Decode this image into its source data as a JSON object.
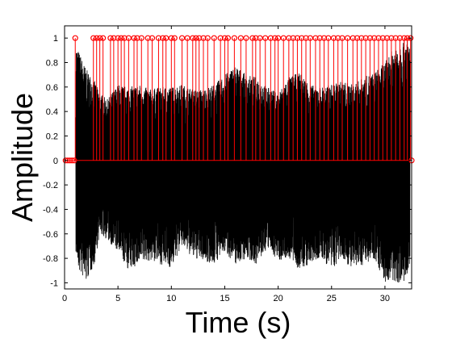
{
  "chart_data": {
    "type": "line",
    "title": "",
    "xlabel": "Time (s)",
    "ylabel": "Amplitude",
    "xlim": [
      0,
      32.5
    ],
    "ylim": [
      -1.05,
      1.1
    ],
    "xticks": [
      0,
      5,
      10,
      15,
      20,
      25,
      30
    ],
    "yticks": [
      -1,
      -0.8,
      -0.6,
      -0.4,
      -0.2,
      0,
      0.2,
      0.4,
      0.6,
      0.8,
      1
    ],
    "ytick_labels": [
      "-1",
      "-0.8",
      "-0.6",
      "-0.4",
      "-0.2",
      "0",
      "0.2",
      "0.4",
      "0.6",
      "0.8",
      "1"
    ],
    "grid": false,
    "series": [
      {
        "kind": "waveform",
        "color": "#000000",
        "x_start": 1.05,
        "x_end": 32.35,
        "envelope_x": [
          1.05,
          1.3,
          2.0,
          2.8,
          3.3,
          4.0,
          5.0,
          6.0,
          7.0,
          8.0,
          9.0,
          10.0,
          11.0,
          12.0,
          13.0,
          14.0,
          15.0,
          16.0,
          17.0,
          18.0,
          19.0,
          20.0,
          21.0,
          22.0,
          23.0,
          24.0,
          25.0,
          26.0,
          27.0,
          28.0,
          29.0,
          30.0,
          31.0,
          32.0,
          32.35
        ],
        "envelope_max": [
          0.95,
          0.9,
          0.75,
          0.65,
          0.55,
          0.5,
          0.62,
          0.6,
          0.62,
          0.58,
          0.6,
          0.6,
          0.62,
          0.58,
          0.58,
          0.62,
          0.7,
          0.78,
          0.7,
          0.68,
          0.6,
          0.55,
          0.68,
          0.72,
          0.62,
          0.6,
          0.62,
          0.65,
          0.62,
          0.68,
          0.72,
          0.8,
          0.95,
          1.0,
          0.95
        ],
        "envelope_min": [
          -0.75,
          -0.9,
          -1.0,
          -0.85,
          -0.6,
          -0.65,
          -0.75,
          -0.9,
          -0.85,
          -0.82,
          -0.85,
          -0.88,
          -0.7,
          -0.8,
          -0.82,
          -0.85,
          -0.75,
          -0.85,
          -0.8,
          -0.85,
          -0.72,
          -0.82,
          -0.8,
          -0.9,
          -0.85,
          -0.8,
          -0.9,
          -0.8,
          -0.9,
          -0.85,
          -0.8,
          -1.0,
          -1.0,
          -1.0,
          -0.9
        ]
      },
      {
        "kind": "stem",
        "color": "#ff0000",
        "marker": "circle",
        "x": [
          1.0,
          2.7,
          3.0,
          3.3,
          3.6,
          4.3,
          4.6,
          5.0,
          5.3,
          5.6,
          6.0,
          6.5,
          6.8,
          7.2,
          7.8,
          8.2,
          8.8,
          9.2,
          9.5,
          10.0,
          10.3,
          11.0,
          11.5,
          12.0,
          12.3,
          12.6,
          13.0,
          13.4,
          14.0,
          14.6,
          15.0,
          15.3,
          15.9,
          16.5,
          17.0,
          17.6,
          17.9,
          18.3,
          18.8,
          19.3,
          19.7,
          20.0,
          20.5,
          21.0,
          21.4,
          21.8,
          22.2,
          22.6,
          23.0,
          23.5,
          23.9,
          24.3,
          24.7,
          25.2,
          25.6,
          26.0,
          26.5,
          27.0,
          27.4,
          27.8,
          28.2,
          28.6,
          29.0,
          29.4,
          29.8,
          30.2,
          30.6,
          31.0,
          31.4,
          31.8,
          32.1,
          32.4
        ],
        "y": [
          1,
          1,
          1,
          1,
          1,
          1,
          1,
          1,
          1,
          1,
          1,
          1,
          1,
          1,
          1,
          1,
          1,
          1,
          1,
          1,
          1,
          1,
          1,
          1,
          1,
          1,
          1,
          1,
          1,
          1,
          1,
          1,
          1,
          1,
          1,
          1,
          1,
          1,
          1,
          1,
          1,
          1,
          1,
          1,
          1,
          1,
          1,
          1,
          1,
          1,
          1,
          1,
          1,
          1,
          1,
          1,
          1,
          1,
          1,
          1,
          1,
          1,
          1,
          1,
          1,
          1,
          1,
          1,
          1,
          1,
          1,
          1
        ],
        "zero_markers_x": [
          0.1,
          0.3,
          0.5,
          0.7,
          0.9,
          32.5
        ]
      }
    ]
  }
}
